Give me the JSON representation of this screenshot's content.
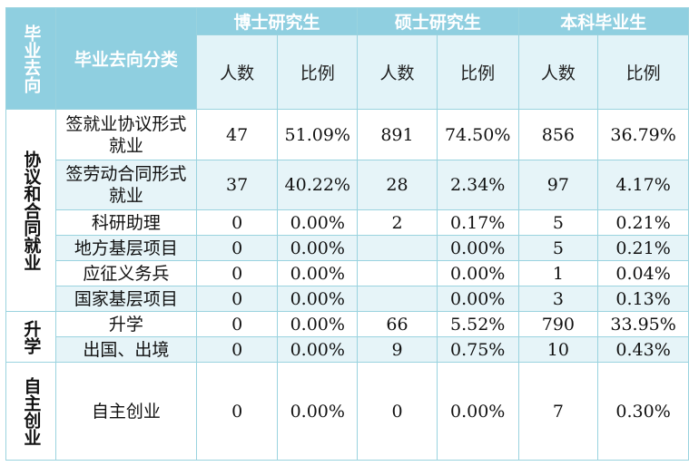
{
  "header": {
    "corner_label": "毕业去向",
    "category_column_label": "毕业去向分类",
    "groups": [
      "博士研究生",
      "硕士研究生",
      "本科毕业生"
    ],
    "sub_columns": [
      "人数",
      "比例"
    ]
  },
  "sections": [
    {
      "label": "协议和合同就业",
      "rows": [
        {
          "name": "签就业协议形式就业",
          "phd_count": "47",
          "phd_ratio": "51.09%",
          "master_count": "891",
          "master_ratio": "74.50%",
          "bachelor_count": "856",
          "bachelor_ratio": "36.79%"
        },
        {
          "name": "签劳动合同形式就业",
          "phd_count": "37",
          "phd_ratio": "40.22%",
          "master_count": "28",
          "master_ratio": "2.34%",
          "bachelor_count": "97",
          "bachelor_ratio": "4.17%"
        },
        {
          "name": "科研助理",
          "phd_count": "0",
          "phd_ratio": "0.00%",
          "master_count": "2",
          "master_ratio": "0.17%",
          "bachelor_count": "5",
          "bachelor_ratio": "0.21%"
        },
        {
          "name": "地方基层项目",
          "phd_count": "0",
          "phd_ratio": "0.00%",
          "master_count": "",
          "master_ratio": "0.00%",
          "bachelor_count": "5",
          "bachelor_ratio": "0.21%"
        },
        {
          "name": "应征义务兵",
          "phd_count": "0",
          "phd_ratio": "0.00%",
          "master_count": "",
          "master_ratio": "0.00%",
          "bachelor_count": "1",
          "bachelor_ratio": "0.04%"
        },
        {
          "name": "国家基层项目",
          "phd_count": "0",
          "phd_ratio": "0.00%",
          "master_count": "",
          "master_ratio": "0.00%",
          "bachelor_count": "3",
          "bachelor_ratio": "0.13%"
        }
      ]
    },
    {
      "label": "升学",
      "rows": [
        {
          "name": "升学",
          "phd_count": "0",
          "phd_ratio": "0.00%",
          "master_count": "66",
          "master_ratio": "5.52%",
          "bachelor_count": "790",
          "bachelor_ratio": "33.95%"
        },
        {
          "name": "出国、出境",
          "phd_count": "0",
          "phd_ratio": "0.00%",
          "master_count": "9",
          "master_ratio": "0.75%",
          "bachelor_count": "10",
          "bachelor_ratio": "0.43%"
        }
      ]
    },
    {
      "label": "自主创业",
      "rows": [
        {
          "name": "自主创业",
          "phd_count": "0",
          "phd_ratio": "0.00%",
          "master_count": "0",
          "master_ratio": "0.00%",
          "bachelor_count": "7",
          "bachelor_ratio": "0.30%"
        }
      ]
    }
  ]
}
